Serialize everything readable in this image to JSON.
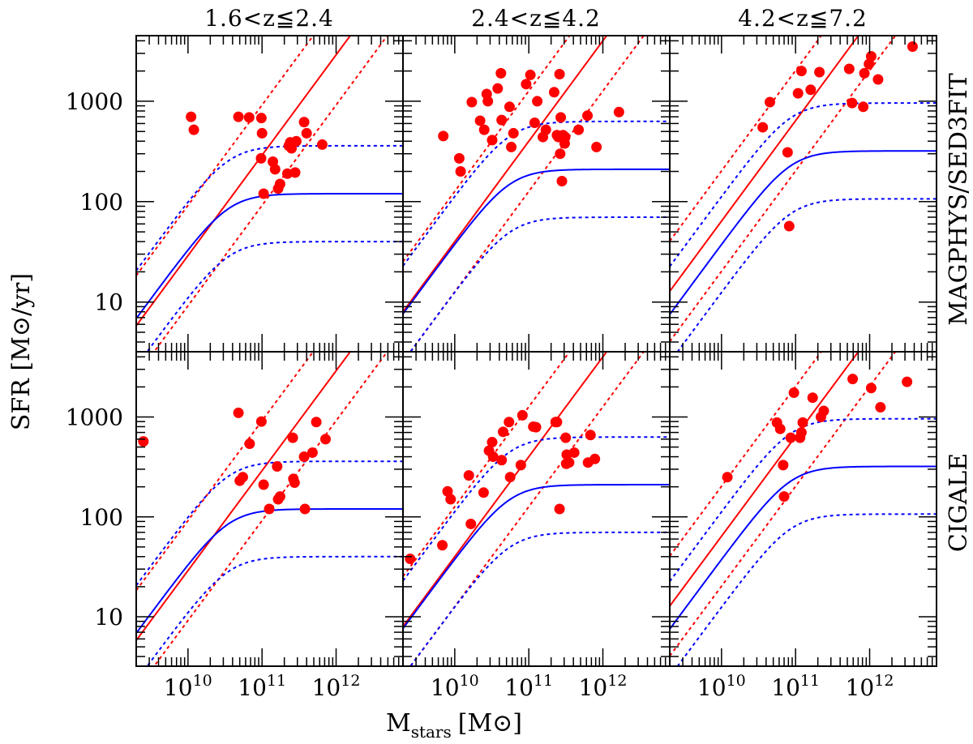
{
  "chart_data": {
    "type": "scatter",
    "layout": "2 rows x 3 columns, shared log axes",
    "xscale": "log",
    "yscale": "log",
    "xlim": [
      2000000000.0,
      8000000000000.0
    ],
    "ylim": [
      3.2,
      4500
    ],
    "xlabel": {
      "main": "M",
      "sub": "stars",
      "unit": "[M⊙]"
    },
    "ylabel": "SFR [M⊙/yr]",
    "x_tick_labels": [
      {
        "value": 10000000000.0,
        "base": "10",
        "exp": "10"
      },
      {
        "value": 100000000000.0,
        "base": "10",
        "exp": "11"
      },
      {
        "value": 1000000000000.0,
        "base": "10",
        "exp": "12"
      }
    ],
    "y_tick_labels": [
      {
        "value": 10,
        "label": "10"
      },
      {
        "value": 100,
        "label": "100"
      },
      {
        "value": 1000,
        "label": "1000"
      }
    ],
    "column_titles": [
      "1.6<z≦2.4",
      "2.4<z≦4.2",
      "4.2<z≦7.2"
    ],
    "row_labels": [
      "MAGPHYS/SED3FIT",
      "CIGALE"
    ],
    "colors": {
      "points": "#ff0000",
      "ms_red": "#ff0000",
      "ms_blue": "#0000ff"
    },
    "main_sequence": {
      "red_linear": {
        "description": "SFR ∝ M*, solid with dotted 0.5 dex band",
        "norm_at_1e10": [
          29,
          40,
          64
        ]
      },
      "blue_saturating": {
        "description": "saturating relation, solid with dotted x3 band",
        "plateau": [
          120,
          210,
          320
        ],
        "knee_mass": [
          35000000000.0,
          55000000000.0,
          85000000000.0
        ]
      }
    },
    "panels": [
      {
        "row": 0,
        "col": 0,
        "points": [
          [
            11000000000.0,
            700
          ],
          [
            12000000000.0,
            520
          ],
          [
            48000000000.0,
            700
          ],
          [
            67000000000.0,
            690
          ],
          [
            98000000000.0,
            680
          ],
          [
            100000000000.0,
            480
          ],
          [
            97000000000.0,
            270
          ],
          [
            105000000000.0,
            120
          ],
          [
            140000000000.0,
            250
          ],
          [
            150000000000.0,
            210
          ],
          [
            165000000000.0,
            135
          ],
          [
            175000000000.0,
            150
          ],
          [
            220000000000.0,
            190
          ],
          [
            230000000000.0,
            360
          ],
          [
            240000000000.0,
            390
          ],
          [
            250000000000.0,
            340
          ],
          [
            280000000000.0,
            195
          ],
          [
            290000000000.0,
            400
          ],
          [
            370000000000.0,
            620
          ],
          [
            400000000000.0,
            480
          ],
          [
            650000000000.0,
            370
          ]
        ]
      },
      {
        "row": 0,
        "col": 1,
        "points": [
          [
            7000000000.0,
            450
          ],
          [
            11500000000.0,
            270
          ],
          [
            12000000000.0,
            200
          ],
          [
            17000000000.0,
            980
          ],
          [
            22000000000.0,
            640
          ],
          [
            25000000000.0,
            520
          ],
          [
            27000000000.0,
            1180
          ],
          [
            28000000000.0,
            1000
          ],
          [
            32000000000.0,
            410
          ],
          [
            38000000000.0,
            1340
          ],
          [
            42000000000.0,
            1900
          ],
          [
            43000000000.0,
            650
          ],
          [
            55000000000.0,
            880
          ],
          [
            58000000000.0,
            350
          ],
          [
            62000000000.0,
            480
          ],
          [
            92000000000.0,
            1480
          ],
          [
            105000000000.0,
            1830
          ],
          [
            120000000000.0,
            610
          ],
          [
            130000000000.0,
            1000
          ],
          [
            155000000000.0,
            440
          ],
          [
            170000000000.0,
            520
          ],
          [
            220000000000.0,
            1230
          ],
          [
            240000000000.0,
            460
          ],
          [
            250000000000.0,
            440
          ],
          [
            260000000000.0,
            1860
          ],
          [
            265000000000.0,
            300
          ],
          [
            270000000000.0,
            690
          ],
          [
            280000000000.0,
            160
          ],
          [
            290000000000.0,
            460
          ],
          [
            300000000000.0,
            430
          ],
          [
            305000000000.0,
            380
          ],
          [
            310000000000.0,
            440
          ],
          [
            470000000000.0,
            520
          ],
          [
            620000000000.0,
            720
          ],
          [
            820000000000.0,
            350
          ],
          [
            1650000000000.0,
            780
          ]
        ]
      },
      {
        "row": 0,
        "col": 2,
        "points": [
          [
            36000000000.0,
            550
          ],
          [
            45000000000.0,
            980
          ],
          [
            78000000000.0,
            310
          ],
          [
            82000000000.0,
            57
          ],
          [
            108000000000.0,
            1200
          ],
          [
            120000000000.0,
            2000
          ],
          [
            160000000000.0,
            1300
          ],
          [
            210000000000.0,
            1950
          ],
          [
            530000000000.0,
            2100
          ],
          [
            580000000000.0,
            960
          ],
          [
            820000000000.0,
            880
          ],
          [
            850000000000.0,
            1900
          ],
          [
            980000000000.0,
            2350
          ],
          [
            1050000000000.0,
            2800
          ],
          [
            1300000000000.0,
            1650
          ],
          [
            3800000000000.0,
            3500
          ]
        ]
      },
      {
        "row": 1,
        "col": 0,
        "points": [
          [
            2500000000.0,
            570
          ],
          [
            48000000000.0,
            1100
          ],
          [
            50000000000.0,
            230
          ],
          [
            55000000000.0,
            250
          ],
          [
            68000000000.0,
            540
          ],
          [
            98000000000.0,
            900
          ],
          [
            105000000000.0,
            210
          ],
          [
            125000000000.0,
            120
          ],
          [
            160000000000.0,
            320
          ],
          [
            165000000000.0,
            150
          ],
          [
            175000000000.0,
            160
          ],
          [
            260000000000.0,
            620
          ],
          [
            265000000000.0,
            240
          ],
          [
            275000000000.0,
            220
          ],
          [
            370000000000.0,
            400
          ],
          [
            380000000000.0,
            120
          ],
          [
            480000000000.0,
            440
          ],
          [
            540000000000.0,
            890
          ],
          [
            720000000000.0,
            600
          ]
        ]
      },
      {
        "row": 1,
        "col": 1,
        "points": [
          [
            2500000000.0,
            38
          ],
          [
            6800000000.0,
            52
          ],
          [
            8000000000.0,
            180
          ],
          [
            8800000000.0,
            150
          ],
          [
            15500000000.0,
            260
          ],
          [
            16500000000.0,
            85
          ],
          [
            24500000000.0,
            175
          ],
          [
            29000000000.0,
            460
          ],
          [
            32000000000.0,
            560
          ],
          [
            33000000000.0,
            400
          ],
          [
            43000000000.0,
            370
          ],
          [
            45000000000.0,
            710
          ],
          [
            54000000000.0,
            890
          ],
          [
            56000000000.0,
            250
          ],
          [
            78000000000.0,
            330
          ],
          [
            82000000000.0,
            1040
          ],
          [
            115000000000.0,
            800
          ],
          [
            125000000000.0,
            790
          ],
          [
            230000000000.0,
            890
          ],
          [
            240000000000.0,
            890
          ],
          [
            260000000000.0,
            120
          ],
          [
            315000000000.0,
            620
          ],
          [
            320000000000.0,
            340
          ],
          [
            325000000000.0,
            420
          ],
          [
            350000000000.0,
            350
          ],
          [
            410000000000.0,
            440
          ],
          [
            630000000000.0,
            350
          ],
          [
            680000000000.0,
            660
          ],
          [
            780000000000.0,
            380
          ]
        ]
      },
      {
        "row": 1,
        "col": 2,
        "points": [
          [
            12000000000.0,
            250
          ],
          [
            56000000000.0,
            880
          ],
          [
            62000000000.0,
            760
          ],
          [
            68000000000.0,
            330
          ],
          [
            70000000000.0,
            160
          ],
          [
            86000000000.0,
            620
          ],
          [
            95000000000.0,
            1750
          ],
          [
            115000000000.0,
            620
          ],
          [
            120000000000.0,
            700
          ],
          [
            125000000000.0,
            880
          ],
          [
            170000000000.0,
            1560
          ],
          [
            220000000000.0,
            1000
          ],
          [
            240000000000.0,
            1150
          ],
          [
            590000000000.0,
            2400
          ],
          [
            1050000000000.0,
            1950
          ],
          [
            1400000000000.0,
            1250
          ],
          [
            3200000000000.0,
            2250
          ]
        ]
      }
    ]
  }
}
